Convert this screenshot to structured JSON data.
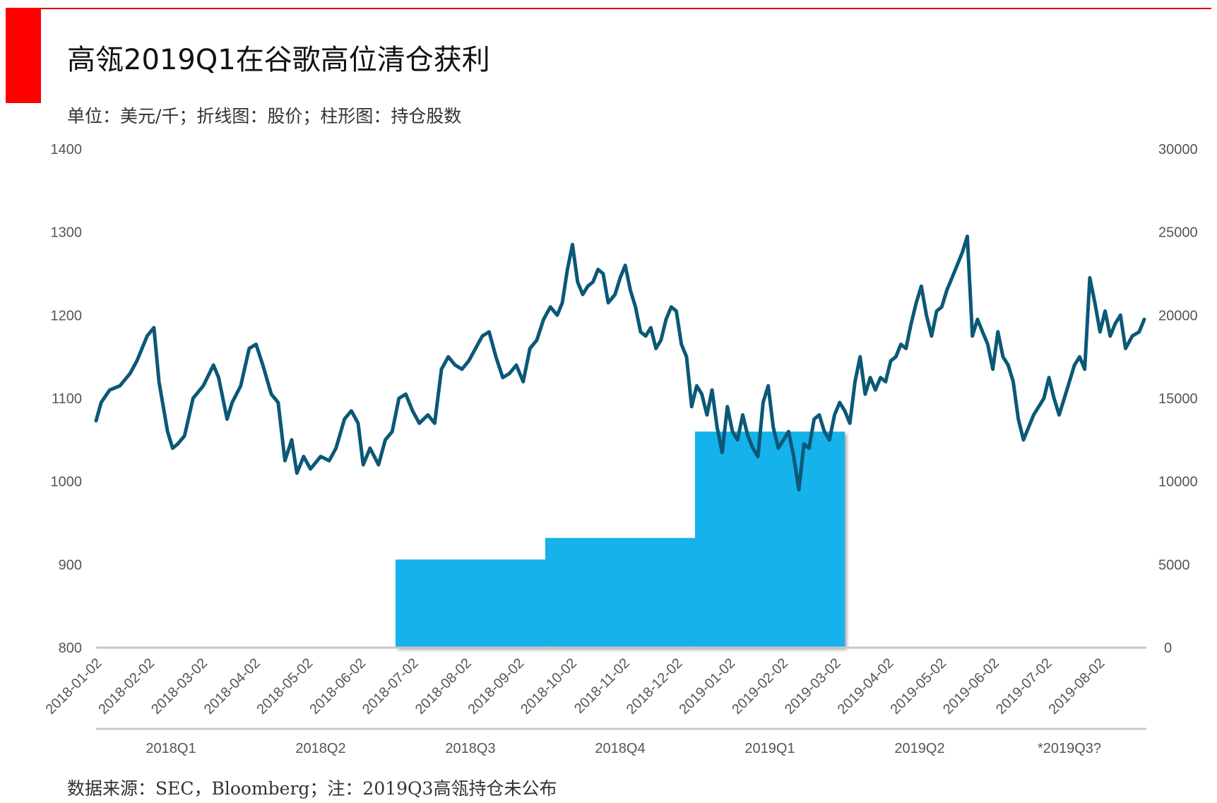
{
  "title": "高瓴2019Q1在谷歌高位清仓获利",
  "subtitle": "单位：美元/千；折线图：股价；柱形图：持仓股数",
  "footer": "数据来源：SEC，Bloomberg；注：2019Q3高瓴持仓未公布",
  "colors": {
    "accent": "#ff0000",
    "line": "#0b5877",
    "bar": "#19b2eb",
    "axis": "#c8c8c8"
  },
  "chart_data": {
    "type": "line+bar",
    "y_left": {
      "ylim": [
        800,
        1400
      ],
      "ticks": [
        "1400",
        "1300",
        "1200",
        "1100",
        "1000",
        "900",
        "800"
      ]
    },
    "y_right": {
      "ylim": [
        0,
        30000
      ],
      "ticks": [
        "30000",
        "25000",
        "20000",
        "15000",
        "10000",
        "5000",
        "0"
      ]
    },
    "x_date_ticks": [
      "2018-01-02",
      "2018-02-02",
      "2018-03-02",
      "2018-04-02",
      "2018-05-02",
      "2018-06-02",
      "2018-07-02",
      "2018-08-02",
      "2018-09-02",
      "2018-10-02",
      "2018-11-02",
      "2018-12-02",
      "2019-01-02",
      "2019-02-02",
      "2019-03-02",
      "2019-04-02",
      "2019-05-02",
      "2019-06-02",
      "2019-07-02",
      "2019-08-02"
    ],
    "quarters": [
      "2018Q1",
      "2018Q2",
      "2018Q3",
      "2018Q4",
      "2019Q1",
      "2019Q2",
      "*2019Q3?"
    ],
    "holdings": [
      {
        "quarter": "2018Q3",
        "shares": 5300
      },
      {
        "quarter": "2018Q4",
        "shares": 6600
      },
      {
        "quarter": "2019Q1",
        "shares": 13000
      }
    ],
    "price_series": [
      [
        "2018-01-02",
        1073
      ],
      [
        "2018-01-05",
        1095
      ],
      [
        "2018-01-10",
        1110
      ],
      [
        "2018-01-16",
        1115
      ],
      [
        "2018-01-22",
        1130
      ],
      [
        "2018-01-26",
        1145
      ],
      [
        "2018-02-01",
        1175
      ],
      [
        "2018-02-05",
        1185
      ],
      [
        "2018-02-08",
        1120
      ],
      [
        "2018-02-13",
        1060
      ],
      [
        "2018-02-16",
        1040
      ],
      [
        "2018-02-19",
        1045
      ],
      [
        "2018-02-23",
        1055
      ],
      [
        "2018-02-28",
        1100
      ],
      [
        "2018-03-06",
        1115
      ],
      [
        "2018-03-12",
        1140
      ],
      [
        "2018-03-15",
        1125
      ],
      [
        "2018-03-20",
        1075
      ],
      [
        "2018-03-23",
        1095
      ],
      [
        "2018-03-28",
        1115
      ],
      [
        "2018-04-02",
        1160
      ],
      [
        "2018-04-06",
        1165
      ],
      [
        "2018-04-10",
        1140
      ],
      [
        "2018-04-15",
        1105
      ],
      [
        "2018-04-19",
        1095
      ],
      [
        "2018-04-23",
        1025
      ],
      [
        "2018-04-27",
        1050
      ],
      [
        "2018-04-30",
        1010
      ],
      [
        "2018-05-04",
        1030
      ],
      [
        "2018-05-08",
        1015
      ],
      [
        "2018-05-14",
        1030
      ],
      [
        "2018-05-19",
        1025
      ],
      [
        "2018-05-23",
        1040
      ],
      [
        "2018-05-28",
        1075
      ],
      [
        "2018-06-01",
        1085
      ],
      [
        "2018-06-05",
        1070
      ],
      [
        "2018-06-08",
        1020
      ],
      [
        "2018-06-12",
        1040
      ],
      [
        "2018-06-17",
        1020
      ],
      [
        "2018-06-21",
        1050
      ],
      [
        "2018-06-25",
        1060
      ],
      [
        "2018-06-29",
        1100
      ],
      [
        "2018-07-03",
        1105
      ],
      [
        "2018-07-07",
        1085
      ],
      [
        "2018-07-11",
        1070
      ],
      [
        "2018-07-16",
        1080
      ],
      [
        "2018-07-20",
        1070
      ],
      [
        "2018-07-24",
        1135
      ],
      [
        "2018-07-28",
        1150
      ],
      [
        "2018-08-01",
        1140
      ],
      [
        "2018-08-05",
        1135
      ],
      [
        "2018-08-09",
        1145
      ],
      [
        "2018-08-13",
        1160
      ],
      [
        "2018-08-17",
        1175
      ],
      [
        "2018-08-21",
        1180
      ],
      [
        "2018-08-25",
        1150
      ],
      [
        "2018-08-29",
        1125
      ],
      [
        "2018-09-02",
        1130
      ],
      [
        "2018-09-06",
        1140
      ],
      [
        "2018-09-10",
        1120
      ],
      [
        "2018-09-14",
        1160
      ],
      [
        "2018-09-18",
        1170
      ],
      [
        "2018-09-22",
        1195
      ],
      [
        "2018-09-26",
        1210
      ],
      [
        "2018-09-30",
        1200
      ],
      [
        "2018-10-03",
        1215
      ],
      [
        "2018-10-06",
        1255
      ],
      [
        "2018-10-09",
        1285
      ],
      [
        "2018-10-12",
        1240
      ],
      [
        "2018-10-15",
        1225
      ],
      [
        "2018-10-18",
        1235
      ],
      [
        "2018-10-21",
        1240
      ],
      [
        "2018-10-24",
        1255
      ],
      [
        "2018-10-27",
        1250
      ],
      [
        "2018-10-30",
        1215
      ],
      [
        "2018-11-03",
        1225
      ],
      [
        "2018-11-06",
        1245
      ],
      [
        "2018-11-09",
        1260
      ],
      [
        "2018-11-12",
        1230
      ],
      [
        "2018-11-15",
        1210
      ],
      [
        "2018-11-18",
        1180
      ],
      [
        "2018-11-21",
        1175
      ],
      [
        "2018-11-24",
        1185
      ],
      [
        "2018-11-27",
        1160
      ],
      [
        "2018-11-30",
        1170
      ],
      [
        "2018-12-03",
        1195
      ],
      [
        "2018-12-06",
        1210
      ],
      [
        "2018-12-09",
        1205
      ],
      [
        "2018-12-12",
        1165
      ],
      [
        "2018-12-15",
        1150
      ],
      [
        "2018-12-18",
        1090
      ],
      [
        "2018-12-21",
        1115
      ],
      [
        "2018-12-24",
        1105
      ],
      [
        "2018-12-27",
        1080
      ],
      [
        "2018-12-30",
        1110
      ],
      [
        "2019-01-02",
        1065
      ],
      [
        "2019-01-05",
        1035
      ],
      [
        "2019-01-08",
        1090
      ],
      [
        "2019-01-11",
        1060
      ],
      [
        "2019-01-14",
        1050
      ],
      [
        "2019-01-17",
        1080
      ],
      [
        "2019-01-20",
        1055
      ],
      [
        "2019-01-23",
        1040
      ],
      [
        "2019-01-26",
        1030
      ],
      [
        "2019-01-29",
        1095
      ],
      [
        "2019-02-01",
        1115
      ],
      [
        "2019-02-04",
        1065
      ],
      [
        "2019-02-07",
        1040
      ],
      [
        "2019-02-10",
        1050
      ],
      [
        "2019-02-13",
        1060
      ],
      [
        "2019-02-16",
        1030
      ],
      [
        "2019-02-19",
        990
      ],
      [
        "2019-02-22",
        1045
      ],
      [
        "2019-02-25",
        1040
      ],
      [
        "2019-02-28",
        1075
      ],
      [
        "2019-03-03",
        1080
      ],
      [
        "2019-03-06",
        1060
      ],
      [
        "2019-03-09",
        1050
      ],
      [
        "2019-03-12",
        1080
      ],
      [
        "2019-03-15",
        1095
      ],
      [
        "2019-03-18",
        1085
      ],
      [
        "2019-03-21",
        1070
      ],
      [
        "2019-03-24",
        1120
      ],
      [
        "2019-03-27",
        1150
      ],
      [
        "2019-03-30",
        1105
      ],
      [
        "2019-04-02",
        1125
      ],
      [
        "2019-04-05",
        1110
      ],
      [
        "2019-04-08",
        1125
      ],
      [
        "2019-04-11",
        1120
      ],
      [
        "2019-04-14",
        1145
      ],
      [
        "2019-04-17",
        1150
      ],
      [
        "2019-04-20",
        1165
      ],
      [
        "2019-04-23",
        1160
      ],
      [
        "2019-04-26",
        1190
      ],
      [
        "2019-04-29",
        1215
      ],
      [
        "2019-05-02",
        1235
      ],
      [
        "2019-05-05",
        1200
      ],
      [
        "2019-05-08",
        1175
      ],
      [
        "2019-05-11",
        1205
      ],
      [
        "2019-05-14",
        1210
      ],
      [
        "2019-05-17",
        1230
      ],
      [
        "2019-05-20",
        1245
      ],
      [
        "2019-05-23",
        1260
      ],
      [
        "2019-05-26",
        1275
      ],
      [
        "2019-05-29",
        1295
      ],
      [
        "2019-06-01",
        1175
      ],
      [
        "2019-06-04",
        1195
      ],
      [
        "2019-06-07",
        1180
      ],
      [
        "2019-06-10",
        1165
      ],
      [
        "2019-06-13",
        1135
      ],
      [
        "2019-06-16",
        1180
      ],
      [
        "2019-06-19",
        1150
      ],
      [
        "2019-06-22",
        1140
      ],
      [
        "2019-06-25",
        1120
      ],
      [
        "2019-06-28",
        1075
      ],
      [
        "2019-07-01",
        1050
      ],
      [
        "2019-07-04",
        1065
      ],
      [
        "2019-07-07",
        1080
      ],
      [
        "2019-07-10",
        1090
      ],
      [
        "2019-07-13",
        1100
      ],
      [
        "2019-07-16",
        1125
      ],
      [
        "2019-07-19",
        1100
      ],
      [
        "2019-07-22",
        1080
      ],
      [
        "2019-07-25",
        1100
      ],
      [
        "2019-07-28",
        1120
      ],
      [
        "2019-07-31",
        1140
      ],
      [
        "2019-08-03",
        1150
      ],
      [
        "2019-08-06",
        1135
      ],
      [
        "2019-08-09",
        1245
      ],
      [
        "2019-08-12",
        1215
      ],
      [
        "2019-08-15",
        1180
      ],
      [
        "2019-08-18",
        1205
      ],
      [
        "2019-08-21",
        1175
      ],
      [
        "2019-08-24",
        1190
      ],
      [
        "2019-08-27",
        1200
      ],
      [
        "2019-08-30",
        1160
      ],
      [
        "2019-09-03",
        1175
      ],
      [
        "2019-09-07",
        1180
      ],
      [
        "2019-09-10",
        1195
      ]
    ]
  }
}
